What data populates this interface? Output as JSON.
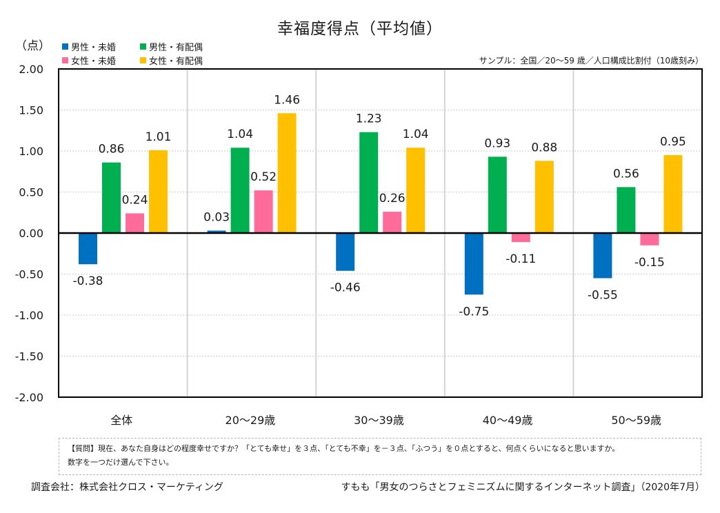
{
  "chart_data": {
    "type": "bar",
    "title": "幸福度得点（平均値）",
    "ylabel": "（点）",
    "xlabel": "",
    "subtitle": "サンプル：全国／20～59 歳／人口構成比割付（10歳刻み）",
    "ylim": [
      -2.0,
      2.0
    ],
    "yticks": [
      "2.00",
      "1.50",
      "1.00",
      "0.50",
      "0.00",
      "-0.50",
      "-1.00",
      "-1.50",
      "-2.00"
    ],
    "ytick_values": [
      2.0,
      1.5,
      1.0,
      0.5,
      0.0,
      -0.5,
      -1.0,
      -1.5,
      -2.0
    ],
    "grid": "horizontal-dotted",
    "legend_position": "top-left",
    "categories": [
      "全体",
      "20～29歳",
      "30～39歳",
      "40～49歳",
      "50～59歳"
    ],
    "series": [
      {
        "name": "男性・未婚",
        "color": "#0070C0",
        "values": [
          -0.38,
          0.03,
          -0.46,
          -0.75,
          -0.55
        ]
      },
      {
        "name": "男性・有配偶",
        "color": "#00B050",
        "values": [
          0.86,
          1.04,
          1.23,
          0.93,
          0.56
        ]
      },
      {
        "name": "女性・未婚",
        "color": "#FF6C9C",
        "values": [
          0.24,
          0.52,
          0.26,
          -0.11,
          -0.15
        ]
      },
      {
        "name": "女性・有配偶",
        "color": "#FFC000",
        "values": [
          1.01,
          1.46,
          1.04,
          0.88,
          0.95
        ]
      }
    ]
  },
  "legend": {
    "items": [
      {
        "label": "男性・未婚",
        "color": "#0070C0"
      },
      {
        "label": "男性・有配偶",
        "color": "#00B050"
      },
      {
        "label": "女性・未婚",
        "color": "#FF6C9C"
      },
      {
        "label": "女性・有配偶",
        "color": "#FFC000"
      }
    ]
  },
  "question": {
    "line1": "【質問】現在、あなた自身はどの程度幸せですか？「とても幸せ」を３点、「とても不幸」を－３点、「ふつう」を０点とすると、何点くらいになると思いますか。",
    "line2": "数字を一つだけ選んで下さい。"
  },
  "footer": {
    "company": "調査会社：株式会社クロス・マーケティング",
    "source": "すもも「男女のつらさとフェミニズムに関するインターネット調査」（2020年7月）"
  }
}
